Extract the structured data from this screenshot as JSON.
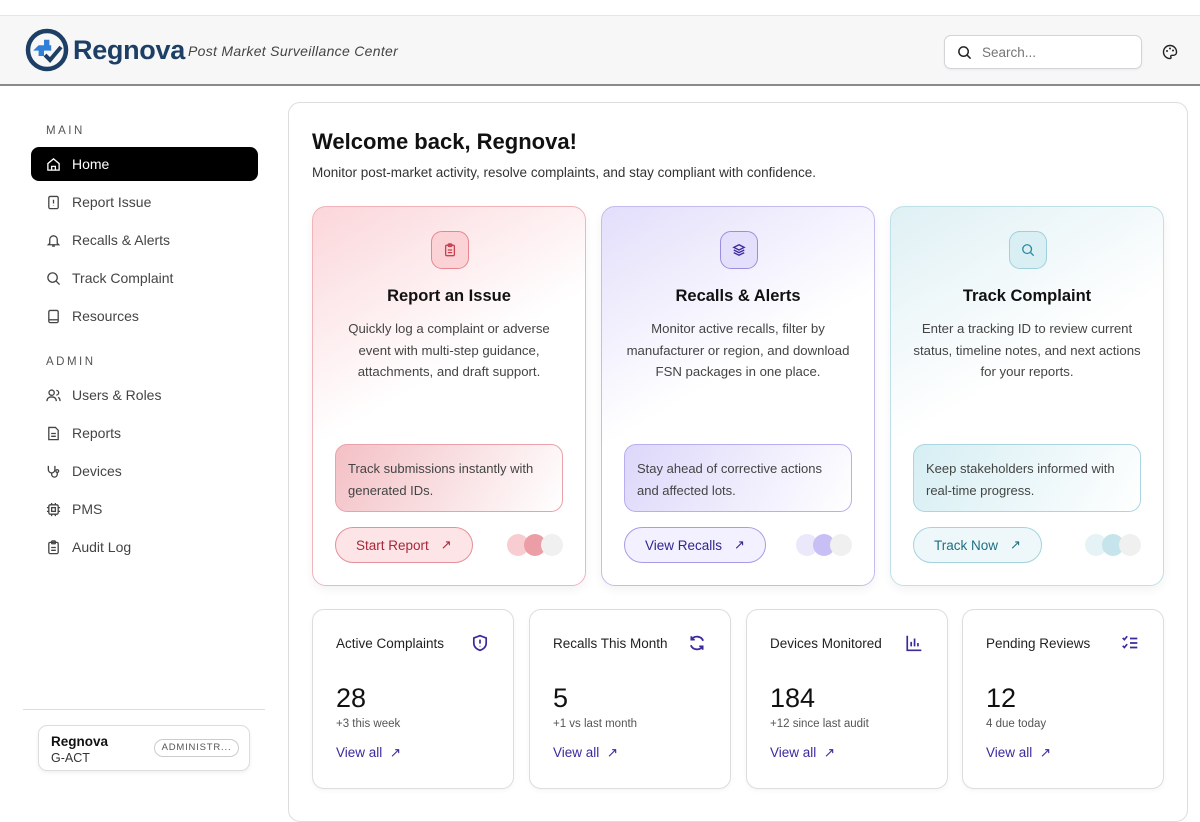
{
  "header": {
    "brand": "Regnova",
    "tagline": "Post Market Surveillance Center",
    "search_placeholder": "Search..."
  },
  "sidebar": {
    "main_label": "MAIN",
    "main_items": [
      {
        "label": "Home",
        "icon": "home-icon"
      },
      {
        "label": "Report Issue",
        "icon": "file-alert-icon"
      },
      {
        "label": "Recalls & Alerts",
        "icon": "bell-icon"
      },
      {
        "label": "Track Complaint",
        "icon": "search-icon"
      },
      {
        "label": "Resources",
        "icon": "book-icon"
      }
    ],
    "admin_label": "ADMIN",
    "admin_items": [
      {
        "label": "Users & Roles",
        "icon": "users-icon"
      },
      {
        "label": "Reports",
        "icon": "file-text-icon"
      },
      {
        "label": "Devices",
        "icon": "stethoscope-icon"
      },
      {
        "label": "PMS",
        "icon": "cpu-icon"
      },
      {
        "label": "Audit Log",
        "icon": "clipboard-icon"
      }
    ],
    "user": {
      "name": "Regnova",
      "org": "G-ACT",
      "role": "ADMINISTR..."
    }
  },
  "main": {
    "title": "Welcome back, Regnova!",
    "subtitle": "Monitor post-market activity, resolve complaints, and stay compliant with confidence.",
    "cards": [
      {
        "title": "Report an Issue",
        "desc": "Quickly log a complaint or adverse event with multi-step guidance, attachments, and draft support.",
        "note": "Track submissions instantly with generated IDs.",
        "button": "Start Report",
        "accent": "#e5737f"
      },
      {
        "title": "Recalls & Alerts",
        "desc": "Monitor active recalls, filter by manufacturer or region, and download FSN packages in one place.",
        "note": "Stay ahead of corrective actions and affected lots.",
        "button": "View Recalls",
        "accent": "#8b7fe0"
      },
      {
        "title": "Track Complaint",
        "desc": "Enter a tracking ID to review current status, timeline notes, and next actions for your reports.",
        "note": "Keep stakeholders informed with real-time progress.",
        "button": "Track Now",
        "accent": "#6cb8c8"
      }
    ],
    "stats": [
      {
        "title": "Active Complaints",
        "value": "28",
        "delta": "+3 this week",
        "link": "View all",
        "icon": "shield-alert-icon"
      },
      {
        "title": "Recalls This Month",
        "value": "5",
        "delta": "+1 vs last month",
        "link": "View all",
        "icon": "refresh-icon"
      },
      {
        "title": "Devices Monitored",
        "value": "184",
        "delta": "+12 since last audit",
        "link": "View all",
        "icon": "bar-chart-icon"
      },
      {
        "title": "Pending Reviews",
        "value": "12",
        "delta": "4 due today",
        "link": "View all",
        "icon": "list-checks-icon"
      }
    ]
  }
}
